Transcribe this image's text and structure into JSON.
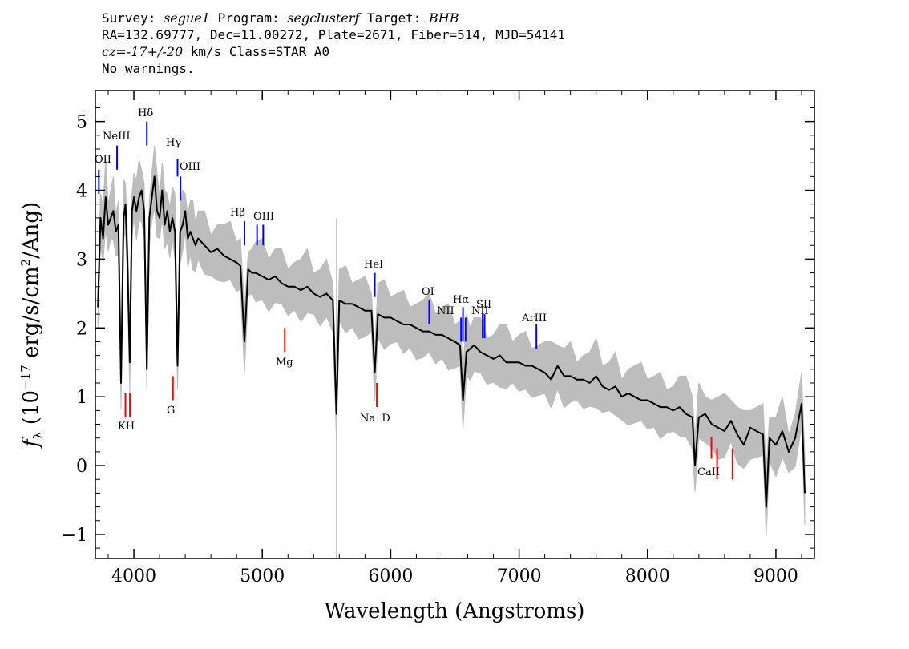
{
  "header": {
    "survey_label": "Survey:",
    "survey": "segue1",
    "program_label": "Program:",
    "program": "segclusterf",
    "target_label": "Target:",
    "target": "BHB",
    "line2": "RA=132.69777, Dec=11.00272, Plate=2671, Fiber=514, MJD=54141",
    "cz_label": "cz=",
    "cz_value": "-17+/-20",
    "cz_rest": " km/s Class=STAR A0",
    "warnings": "No warnings."
  },
  "chart_data": {
    "type": "line",
    "xlabel": "Wavelength (Angstroms)",
    "ylabel": "f_λ (10^-17 erg/s/cm^2/Ang)",
    "xlim": [
      3700,
      9300
    ],
    "ylim": [
      -1.35,
      5.45
    ],
    "x_ticks": [
      4000,
      5000,
      6000,
      7000,
      8000,
      9000
    ],
    "y_ticks": [
      -1,
      0,
      1,
      2,
      3,
      4,
      5
    ],
    "series": [
      {
        "role": "flux",
        "color": "#000000",
        "x": [
          3720,
          3740,
          3760,
          3780,
          3800,
          3820,
          3840,
          3860,
          3880,
          3900,
          3920,
          3935,
          3950,
          3968,
          3985,
          4000,
          4020,
          4040,
          4060,
          4080,
          4101,
          4120,
          4140,
          4160,
          4180,
          4200,
          4220,
          4240,
          4260,
          4280,
          4300,
          4320,
          4340,
          4360,
          4380,
          4400,
          4420,
          4440,
          4460,
          4480,
          4500,
          4550,
          4600,
          4650,
          4700,
          4750,
          4800,
          4830,
          4861,
          4890,
          4920,
          4950,
          5000,
          5050,
          5100,
          5150,
          5200,
          5250,
          5300,
          5350,
          5400,
          5450,
          5500,
          5550,
          5577,
          5600,
          5650,
          5700,
          5750,
          5800,
          5850,
          5876,
          5900,
          5950,
          6000,
          6050,
          6100,
          6150,
          6200,
          6250,
          6300,
          6350,
          6400,
          6450,
          6500,
          6540,
          6563,
          6590,
          6620,
          6650,
          6700,
          6750,
          6800,
          6850,
          6900,
          6950,
          7000,
          7050,
          7100,
          7150,
          7200,
          7250,
          7300,
          7350,
          7400,
          7450,
          7500,
          7550,
          7600,
          7650,
          7700,
          7750,
          7800,
          7850,
          7900,
          7950,
          8000,
          8050,
          8100,
          8150,
          8200,
          8250,
          8300,
          8350,
          8370,
          8400,
          8450,
          8500,
          8550,
          8600,
          8650,
          8700,
          8750,
          8800,
          8850,
          8900,
          8925,
          8950,
          9000,
          9050,
          9100,
          9150,
          9200,
          9225
        ],
        "y": [
          2.3,
          3.6,
          3.3,
          3.9,
          3.5,
          3.6,
          3.7,
          3.4,
          3.5,
          1.2,
          3.6,
          3.8,
          3.0,
          1.5,
          3.7,
          3.9,
          3.7,
          3.9,
          4.0,
          3.7,
          1.4,
          3.6,
          3.9,
          4.2,
          3.7,
          3.6,
          4.0,
          3.5,
          3.7,
          3.4,
          3.6,
          3.4,
          1.45,
          3.4,
          3.5,
          3.7,
          3.3,
          3.4,
          3.3,
          3.2,
          3.3,
          3.2,
          3.1,
          3.15,
          3.05,
          3.0,
          2.95,
          2.9,
          1.8,
          2.85,
          2.8,
          2.8,
          2.75,
          2.7,
          2.75,
          2.65,
          2.6,
          2.6,
          2.55,
          2.6,
          2.5,
          2.45,
          2.5,
          2.4,
          0.75,
          2.4,
          2.35,
          2.35,
          2.3,
          2.25,
          2.25,
          1.35,
          2.2,
          2.15,
          2.15,
          2.1,
          2.05,
          2.05,
          2.0,
          1.95,
          1.95,
          1.9,
          1.9,
          1.85,
          1.8,
          1.75,
          0.95,
          1.65,
          1.7,
          1.75,
          1.65,
          1.6,
          1.55,
          1.6,
          1.5,
          1.5,
          1.5,
          1.45,
          1.45,
          1.4,
          1.35,
          1.25,
          1.45,
          1.3,
          1.3,
          1.25,
          1.25,
          1.2,
          1.3,
          1.15,
          1.1,
          1.15,
          1.0,
          1.05,
          1.0,
          0.95,
          0.95,
          0.9,
          0.85,
          0.85,
          0.8,
          0.85,
          0.75,
          0.7,
          0.0,
          0.7,
          0.75,
          0.6,
          0.55,
          0.5,
          0.65,
          0.45,
          0.3,
          0.55,
          0.5,
          0.45,
          -0.6,
          0.4,
          0.3,
          0.5,
          0.2,
          0.4,
          0.9,
          -0.4
        ]
      }
    ],
    "noise_band": {
      "color": "#bdbdbd",
      "half_width": 0.3
    },
    "emission_lines": [
      {
        "label": "OII",
        "wavelength": 3727
      },
      {
        "label": "NeIII",
        "wavelength": 3869
      },
      {
        "label": "Hδ",
        "wavelength": 4101
      },
      {
        "label": "Hγ",
        "wavelength": 4340
      },
      {
        "label": "OIII",
        "wavelength": 4363
      },
      {
        "label": "Hβ",
        "wavelength": 4861
      },
      {
        "label": "OIII",
        "wavelength": 4959
      },
      {
        "label": "OIII",
        "wavelength": 5007
      },
      {
        "label": "HeI",
        "wavelength": 5876
      },
      {
        "label": "OI",
        "wavelength": 6300
      },
      {
        "label": "NII",
        "wavelength": 6548
      },
      {
        "label": "Hα",
        "wavelength": 6563
      },
      {
        "label": "NII",
        "wavelength": 6583
      },
      {
        "label": "SII",
        "wavelength": 6716
      },
      {
        "label": "SII",
        "wavelength": 6731
      },
      {
        "label": "ArIII",
        "wavelength": 7135
      }
    ],
    "absorption_lines": [
      {
        "label": "K",
        "wavelength": 3934
      },
      {
        "label": "H",
        "wavelength": 3969
      },
      {
        "label": "G",
        "wavelength": 4304
      },
      {
        "label": "Mg",
        "wavelength": 5175
      },
      {
        "label": "Na",
        "wavelength": 5892
      },
      {
        "label": "D",
        "wavelength": 5892
      },
      {
        "label": "CaII",
        "wavelength": 8498
      },
      {
        "label": "CaII",
        "wavelength": 8542
      },
      {
        "label": "CaII",
        "wavelength": 8662
      }
    ],
    "line_label_texts": {
      "oii": "OII",
      "neiii": "NeIII",
      "hdelta": "Hδ",
      "hgamma": "Hγ",
      "oiii_a": "OIII",
      "hbeta": "Hβ",
      "oiii_b": "OIII",
      "hei": "HeI",
      "oi": "OI",
      "nii_a": "NII",
      "halpha": "Hα",
      "nii_b": "NII",
      "sii": "SII",
      "ariii": "ArIII",
      "kh": "KH",
      "g": "G",
      "mg": "Mg",
      "nad": "Na  D",
      "caii": "CaII"
    },
    "colors": {
      "emission": "#0000ff",
      "absorption": "#ff0000"
    }
  }
}
